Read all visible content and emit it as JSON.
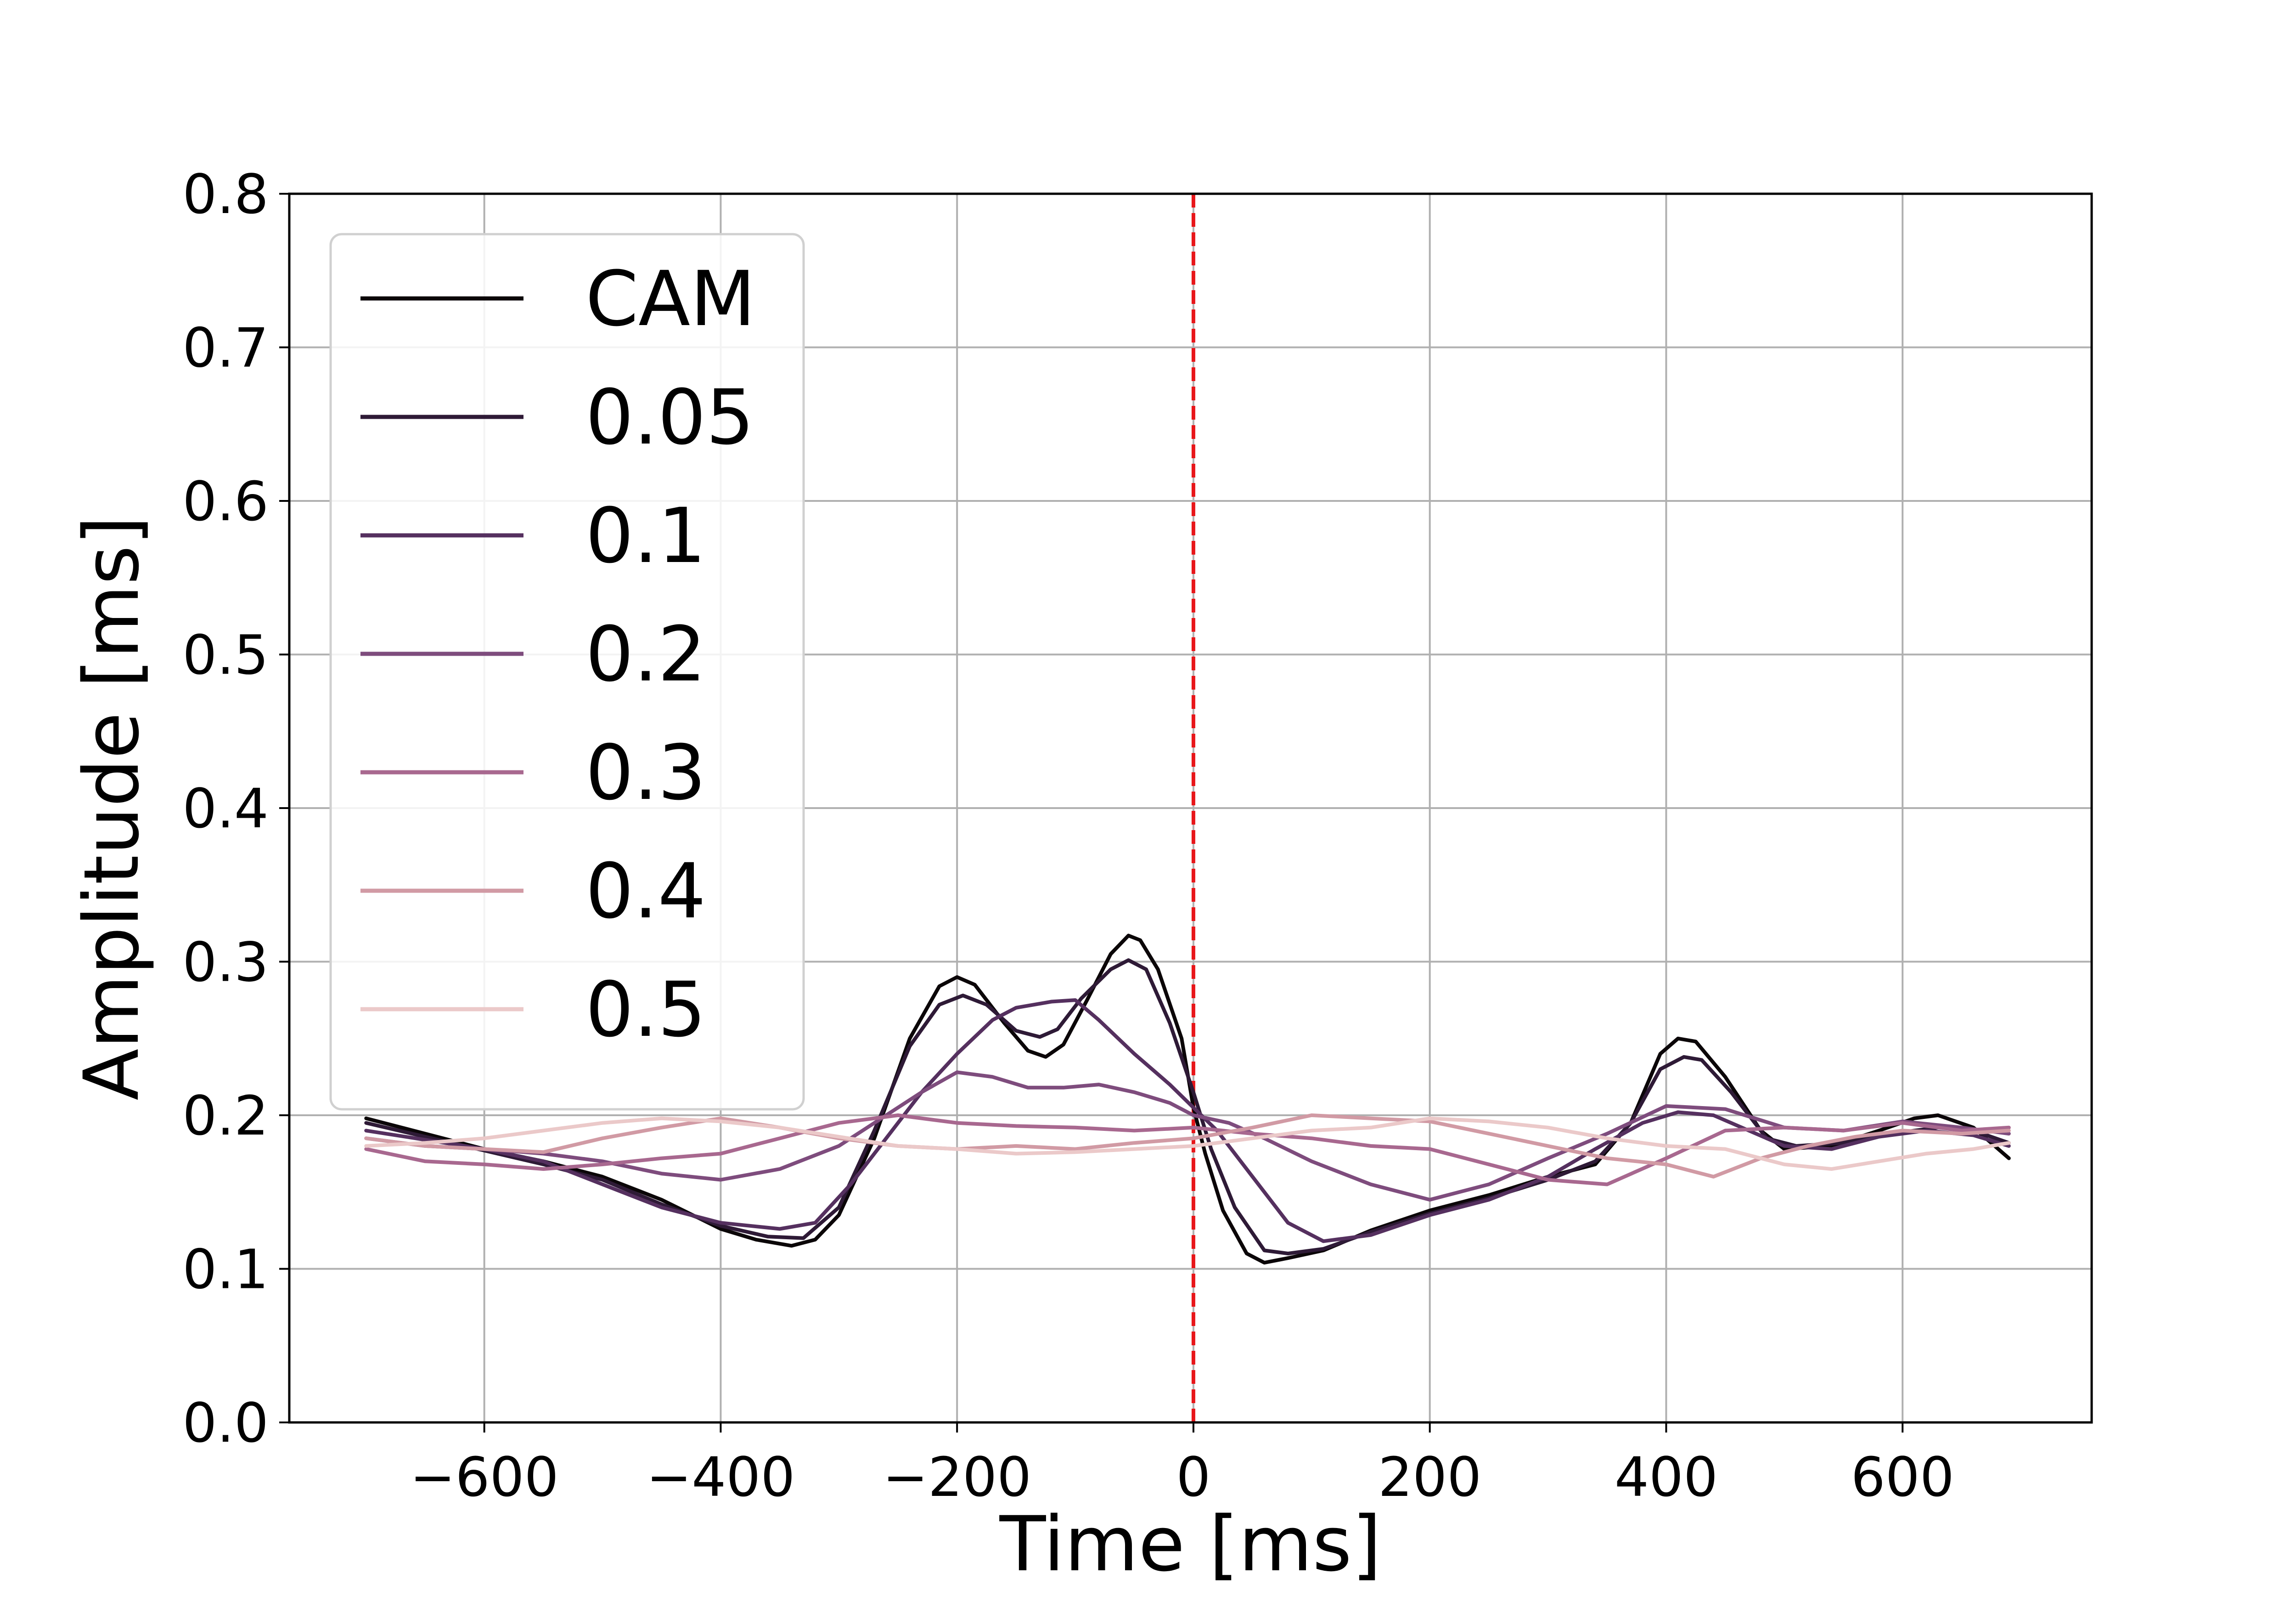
{
  "chart_data": {
    "type": "line",
    "title": "",
    "xlabel": "Time [ms]",
    "ylabel": "Amplitude [ms]",
    "xlim": [
      -765,
      760
    ],
    "ylim": [
      0.0,
      0.8
    ],
    "xticks": [
      -600,
      -400,
      -200,
      0,
      200,
      400,
      600
    ],
    "xtick_labels": [
      "−600",
      "−400",
      "−200",
      "0",
      "200",
      "400",
      "600"
    ],
    "yticks": [
      0.0,
      0.1,
      0.2,
      0.3,
      0.4,
      0.5,
      0.6,
      0.7,
      0.8
    ],
    "ytick_labels": [
      "0.0",
      "0.1",
      "0.2",
      "0.3",
      "0.4",
      "0.5",
      "0.6",
      "0.7",
      "0.8"
    ],
    "grid": true,
    "legend_position": "upper-left",
    "vline": {
      "x": 0,
      "color": "#e8161a",
      "style": "dashed"
    },
    "series": [
      {
        "name": "CAM",
        "color": "#0b0608",
        "points": [
          [
            -700,
            0.198
          ],
          [
            -650,
            0.188
          ],
          [
            -600,
            0.178
          ],
          [
            -550,
            0.17
          ],
          [
            -500,
            0.16
          ],
          [
            -450,
            0.145
          ],
          [
            -400,
            0.126
          ],
          [
            -370,
            0.119
          ],
          [
            -340,
            0.115
          ],
          [
            -320,
            0.119
          ],
          [
            -300,
            0.135
          ],
          [
            -270,
            0.185
          ],
          [
            -240,
            0.25
          ],
          [
            -215,
            0.284
          ],
          [
            -200,
            0.29
          ],
          [
            -185,
            0.285
          ],
          [
            -160,
            0.26
          ],
          [
            -140,
            0.242
          ],
          [
            -125,
            0.238
          ],
          [
            -110,
            0.246
          ],
          [
            -90,
            0.275
          ],
          [
            -70,
            0.305
          ],
          [
            -55,
            0.317
          ],
          [
            -45,
            0.314
          ],
          [
            -30,
            0.295
          ],
          [
            -10,
            0.25
          ],
          [
            0,
            0.205
          ],
          [
            10,
            0.175
          ],
          [
            25,
            0.138
          ],
          [
            45,
            0.11
          ],
          [
            60,
            0.104
          ],
          [
            80,
            0.107
          ],
          [
            110,
            0.112
          ],
          [
            150,
            0.125
          ],
          [
            200,
            0.138
          ],
          [
            250,
            0.148
          ],
          [
            300,
            0.16
          ],
          [
            340,
            0.168
          ],
          [
            370,
            0.195
          ],
          [
            395,
            0.24
          ],
          [
            410,
            0.25
          ],
          [
            425,
            0.248
          ],
          [
            450,
            0.225
          ],
          [
            480,
            0.19
          ],
          [
            500,
            0.178
          ],
          [
            540,
            0.18
          ],
          [
            580,
            0.19
          ],
          [
            610,
            0.198
          ],
          [
            630,
            0.2
          ],
          [
            660,
            0.192
          ],
          [
            690,
            0.172
          ]
        ]
      },
      {
        "name": "0.05",
        "color": "#2e1a36",
        "points": [
          [
            -700,
            0.195
          ],
          [
            -650,
            0.186
          ],
          [
            -600,
            0.177
          ],
          [
            -550,
            0.168
          ],
          [
            -500,
            0.158
          ],
          [
            -450,
            0.142
          ],
          [
            -400,
            0.128
          ],
          [
            -360,
            0.121
          ],
          [
            -330,
            0.12
          ],
          [
            -300,
            0.14
          ],
          [
            -270,
            0.19
          ],
          [
            -240,
            0.245
          ],
          [
            -215,
            0.272
          ],
          [
            -195,
            0.278
          ],
          [
            -175,
            0.272
          ],
          [
            -150,
            0.255
          ],
          [
            -130,
            0.251
          ],
          [
            -115,
            0.256
          ],
          [
            -95,
            0.276
          ],
          [
            -70,
            0.295
          ],
          [
            -55,
            0.301
          ],
          [
            -40,
            0.295
          ],
          [
            -20,
            0.26
          ],
          [
            0,
            0.215
          ],
          [
            15,
            0.178
          ],
          [
            35,
            0.14
          ],
          [
            60,
            0.112
          ],
          [
            80,
            0.11
          ],
          [
            110,
            0.113
          ],
          [
            150,
            0.124
          ],
          [
            200,
            0.136
          ],
          [
            250,
            0.146
          ],
          [
            300,
            0.158
          ],
          [
            340,
            0.17
          ],
          [
            370,
            0.195
          ],
          [
            395,
            0.23
          ],
          [
            415,
            0.238
          ],
          [
            430,
            0.236
          ],
          [
            455,
            0.215
          ],
          [
            485,
            0.185
          ],
          [
            510,
            0.18
          ],
          [
            550,
            0.182
          ],
          [
            590,
            0.188
          ],
          [
            630,
            0.192
          ],
          [
            660,
            0.19
          ],
          [
            690,
            0.182
          ]
        ]
      },
      {
        "name": "0.1",
        "color": "#55305f",
        "points": [
          [
            -700,
            0.19
          ],
          [
            -650,
            0.184
          ],
          [
            -600,
            0.178
          ],
          [
            -550,
            0.17
          ],
          [
            -500,
            0.155
          ],
          [
            -450,
            0.14
          ],
          [
            -400,
            0.13
          ],
          [
            -350,
            0.126
          ],
          [
            -320,
            0.13
          ],
          [
            -290,
            0.155
          ],
          [
            -260,
            0.185
          ],
          [
            -230,
            0.215
          ],
          [
            -200,
            0.24
          ],
          [
            -170,
            0.262
          ],
          [
            -150,
            0.27
          ],
          [
            -120,
            0.274
          ],
          [
            -100,
            0.275
          ],
          [
            -80,
            0.262
          ],
          [
            -50,
            0.24
          ],
          [
            -20,
            0.22
          ],
          [
            0,
            0.205
          ],
          [
            20,
            0.19
          ],
          [
            50,
            0.16
          ],
          [
            80,
            0.13
          ],
          [
            110,
            0.118
          ],
          [
            150,
            0.122
          ],
          [
            200,
            0.135
          ],
          [
            250,
            0.145
          ],
          [
            300,
            0.16
          ],
          [
            340,
            0.178
          ],
          [
            380,
            0.195
          ],
          [
            410,
            0.202
          ],
          [
            440,
            0.2
          ],
          [
            470,
            0.19
          ],
          [
            500,
            0.18
          ],
          [
            540,
            0.178
          ],
          [
            580,
            0.186
          ],
          [
            620,
            0.19
          ],
          [
            660,
            0.187
          ],
          [
            690,
            0.18
          ]
        ]
      },
      {
        "name": "0.2",
        "color": "#7e4c7d",
        "points": [
          [
            -700,
            0.185
          ],
          [
            -650,
            0.18
          ],
          [
            -600,
            0.178
          ],
          [
            -550,
            0.175
          ],
          [
            -500,
            0.17
          ],
          [
            -450,
            0.162
          ],
          [
            -400,
            0.158
          ],
          [
            -350,
            0.165
          ],
          [
            -300,
            0.18
          ],
          [
            -260,
            0.2
          ],
          [
            -230,
            0.215
          ],
          [
            -200,
            0.228
          ],
          [
            -170,
            0.225
          ],
          [
            -140,
            0.218
          ],
          [
            -110,
            0.218
          ],
          [
            -80,
            0.22
          ],
          [
            -50,
            0.215
          ],
          [
            -20,
            0.208
          ],
          [
            0,
            0.2
          ],
          [
            30,
            0.195
          ],
          [
            60,
            0.185
          ],
          [
            100,
            0.17
          ],
          [
            150,
            0.155
          ],
          [
            200,
            0.145
          ],
          [
            250,
            0.155
          ],
          [
            300,
            0.172
          ],
          [
            350,
            0.188
          ],
          [
            400,
            0.206
          ],
          [
            450,
            0.204
          ],
          [
            500,
            0.192
          ],
          [
            550,
            0.19
          ],
          [
            600,
            0.196
          ],
          [
            650,
            0.192
          ],
          [
            690,
            0.188
          ]
        ]
      },
      {
        "name": "0.3",
        "color": "#a8688f",
        "points": [
          [
            -700,
            0.178
          ],
          [
            -650,
            0.17
          ],
          [
            -600,
            0.168
          ],
          [
            -550,
            0.165
          ],
          [
            -500,
            0.168
          ],
          [
            -450,
            0.172
          ],
          [
            -400,
            0.175
          ],
          [
            -350,
            0.185
          ],
          [
            -300,
            0.195
          ],
          [
            -250,
            0.2
          ],
          [
            -200,
            0.195
          ],
          [
            -150,
            0.193
          ],
          [
            -100,
            0.192
          ],
          [
            -50,
            0.19
          ],
          [
            0,
            0.192
          ],
          [
            50,
            0.188
          ],
          [
            100,
            0.185
          ],
          [
            150,
            0.18
          ],
          [
            200,
            0.178
          ],
          [
            250,
            0.168
          ],
          [
            300,
            0.158
          ],
          [
            350,
            0.155
          ],
          [
            400,
            0.172
          ],
          [
            450,
            0.19
          ],
          [
            500,
            0.192
          ],
          [
            550,
            0.19
          ],
          [
            600,
            0.195
          ],
          [
            650,
            0.19
          ],
          [
            690,
            0.192
          ]
        ]
      },
      {
        "name": "0.4",
        "color": "#d19aa4",
        "points": [
          [
            -700,
            0.185
          ],
          [
            -650,
            0.18
          ],
          [
            -600,
            0.178
          ],
          [
            -550,
            0.176
          ],
          [
            -500,
            0.185
          ],
          [
            -450,
            0.192
          ],
          [
            -400,
            0.198
          ],
          [
            -350,
            0.192
          ],
          [
            -300,
            0.185
          ],
          [
            -250,
            0.18
          ],
          [
            -200,
            0.178
          ],
          [
            -150,
            0.18
          ],
          [
            -100,
            0.178
          ],
          [
            -50,
            0.182
          ],
          [
            0,
            0.185
          ],
          [
            50,
            0.192
          ],
          [
            100,
            0.2
          ],
          [
            150,
            0.198
          ],
          [
            200,
            0.196
          ],
          [
            250,
            0.188
          ],
          [
            300,
            0.18
          ],
          [
            350,
            0.172
          ],
          [
            400,
            0.168
          ],
          [
            440,
            0.16
          ],
          [
            480,
            0.172
          ],
          [
            520,
            0.18
          ],
          [
            560,
            0.186
          ],
          [
            600,
            0.19
          ],
          [
            650,
            0.188
          ],
          [
            690,
            0.19
          ]
        ]
      },
      {
        "name": "0.5",
        "color": "#ebc9c9",
        "points": [
          [
            -700,
            0.18
          ],
          [
            -650,
            0.182
          ],
          [
            -600,
            0.185
          ],
          [
            -550,
            0.19
          ],
          [
            -500,
            0.195
          ],
          [
            -450,
            0.198
          ],
          [
            -400,
            0.196
          ],
          [
            -350,
            0.192
          ],
          [
            -300,
            0.186
          ],
          [
            -250,
            0.18
          ],
          [
            -200,
            0.178
          ],
          [
            -150,
            0.175
          ],
          [
            -100,
            0.176
          ],
          [
            -50,
            0.178
          ],
          [
            0,
            0.18
          ],
          [
            50,
            0.185
          ],
          [
            100,
            0.19
          ],
          [
            150,
            0.192
          ],
          [
            200,
            0.198
          ],
          [
            250,
            0.196
          ],
          [
            300,
            0.192
          ],
          [
            350,
            0.185
          ],
          [
            400,
            0.18
          ],
          [
            450,
            0.178
          ],
          [
            500,
            0.168
          ],
          [
            540,
            0.165
          ],
          [
            580,
            0.17
          ],
          [
            620,
            0.175
          ],
          [
            660,
            0.178
          ],
          [
            690,
            0.182
          ]
        ]
      }
    ]
  }
}
